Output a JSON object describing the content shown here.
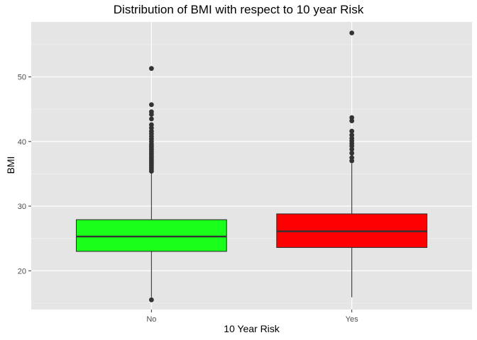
{
  "chart_data": {
    "type": "box",
    "title": "Distribution of BMI with respect to 10 year Risk",
    "xlabel": "10 Year Risk",
    "ylabel": "BMI",
    "categories": [
      "No",
      "Yes"
    ],
    "ylim": [
      14,
      58.5
    ],
    "yticks": [
      20,
      30,
      40,
      50
    ],
    "grid": true,
    "colors": {
      "panel": "#e5e5e5",
      "grid_major": "#ffffff",
      "box_line": "#333333",
      "outlier": "#333333"
    },
    "boxes": [
      {
        "category": "No",
        "fill": "#1aff1a",
        "q1": 23.0,
        "median": 25.3,
        "q3": 27.9,
        "whisker_low": 15.9,
        "whisker_high": 35.3,
        "outliers": [
          15.5,
          35.4,
          35.7,
          36.0,
          36.3,
          36.6,
          36.9,
          37.2,
          37.5,
          37.8,
          38.1,
          38.4,
          38.7,
          39.0,
          39.3,
          39.6,
          40.0,
          40.4,
          40.8,
          41.2,
          41.6,
          42.1,
          42.6,
          43.5,
          44.2,
          44.6,
          45.7,
          51.3
        ]
      },
      {
        "category": "Yes",
        "fill": "#ff0000",
        "q1": 23.6,
        "median": 26.1,
        "q3": 28.8,
        "whisker_low": 15.9,
        "whisker_high": 36.6,
        "outliers": [
          37.0,
          37.5,
          38.2,
          38.8,
          39.3,
          39.7,
          40.1,
          40.5,
          41.0,
          41.6,
          43.2,
          43.7,
          56.8
        ]
      }
    ]
  }
}
